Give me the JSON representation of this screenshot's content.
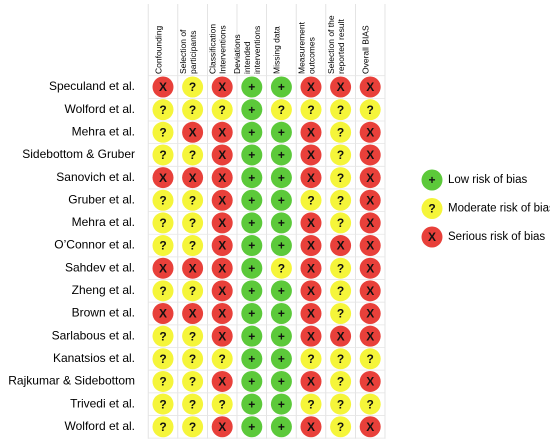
{
  "columns": [
    [
      "Confounding"
    ],
    [
      "Selection of",
      "participants"
    ],
    [
      "Classification",
      "Interventions"
    ],
    [
      "Deviations",
      "intended",
      "interventions"
    ],
    [
      "Missing data"
    ],
    [
      "Measurement",
      "outcomes"
    ],
    [
      "Selection of the",
      "reported result"
    ],
    [
      "Overall BIAS"
    ]
  ],
  "rows": [
    {
      "study": "Speculand et al.",
      "judgements": [
        "X",
        "?",
        "X",
        "+",
        "+",
        "X",
        "X",
        "X"
      ]
    },
    {
      "study": "Wolford et al.",
      "judgements": [
        "?",
        "?",
        "?",
        "+",
        "?",
        "?",
        "?",
        "?"
      ]
    },
    {
      "study": "Mehra et al.",
      "judgements": [
        "?",
        "X",
        "X",
        "+",
        "+",
        "X",
        "?",
        "X"
      ]
    },
    {
      "study": "Sidebottom & Gruber",
      "judgements": [
        "?",
        "?",
        "X",
        "+",
        "+",
        "X",
        "?",
        "X"
      ]
    },
    {
      "study": "Sanovich et al.",
      "judgements": [
        "X",
        "X",
        "X",
        "+",
        "+",
        "X",
        "?",
        "X"
      ]
    },
    {
      "study": "Gruber et al.",
      "judgements": [
        "?",
        "?",
        "X",
        "+",
        "+",
        "?",
        "?",
        "X"
      ]
    },
    {
      "study": "Mehra et al.",
      "judgements": [
        "?",
        "?",
        "X",
        "+",
        "+",
        "X",
        "?",
        "X"
      ]
    },
    {
      "study": "O’Connor et al.",
      "judgements": [
        "?",
        "?",
        "X",
        "+",
        "+",
        "X",
        "X",
        "X"
      ]
    },
    {
      "study": "Sahdev et al.",
      "judgements": [
        "X",
        "X",
        "X",
        "+",
        "?",
        "X",
        "?",
        "X"
      ]
    },
    {
      "study": "Zheng et al.",
      "judgements": [
        "?",
        "?",
        "X",
        "+",
        "+",
        "X",
        "?",
        "X"
      ]
    },
    {
      "study": "Brown et al.",
      "judgements": [
        "X",
        "X",
        "X",
        "+",
        "+",
        "X",
        "?",
        "X"
      ]
    },
    {
      "study": "Sarlabous et al.",
      "judgements": [
        "?",
        "?",
        "X",
        "+",
        "+",
        "X",
        "X",
        "X"
      ]
    },
    {
      "study": "Kanatsios et al.",
      "judgements": [
        "?",
        "?",
        "?",
        "+",
        "+",
        "?",
        "?",
        "?"
      ]
    },
    {
      "study": "Rajkumar & Sidebottom",
      "judgements": [
        "?",
        "?",
        "X",
        "+",
        "+",
        "X",
        "?",
        "X"
      ]
    },
    {
      "study": "Trivedi et al.",
      "judgements": [
        "?",
        "?",
        "?",
        "+",
        "+",
        "?",
        "?",
        "?"
      ]
    },
    {
      "study": "Wolford et al.",
      "judgements": [
        "?",
        "?",
        "X",
        "+",
        "+",
        "X",
        "?",
        "X"
      ]
    }
  ],
  "legend": [
    {
      "symbol": "+",
      "label": "Low risk of bias",
      "color": "#5cc93a"
    },
    {
      "symbol": "?",
      "label": "Moderate risk of bias",
      "color": "#f5f53a"
    },
    {
      "symbol": "X",
      "label": "Serious risk of bias",
      "color": "#e8403a"
    }
  ]
}
